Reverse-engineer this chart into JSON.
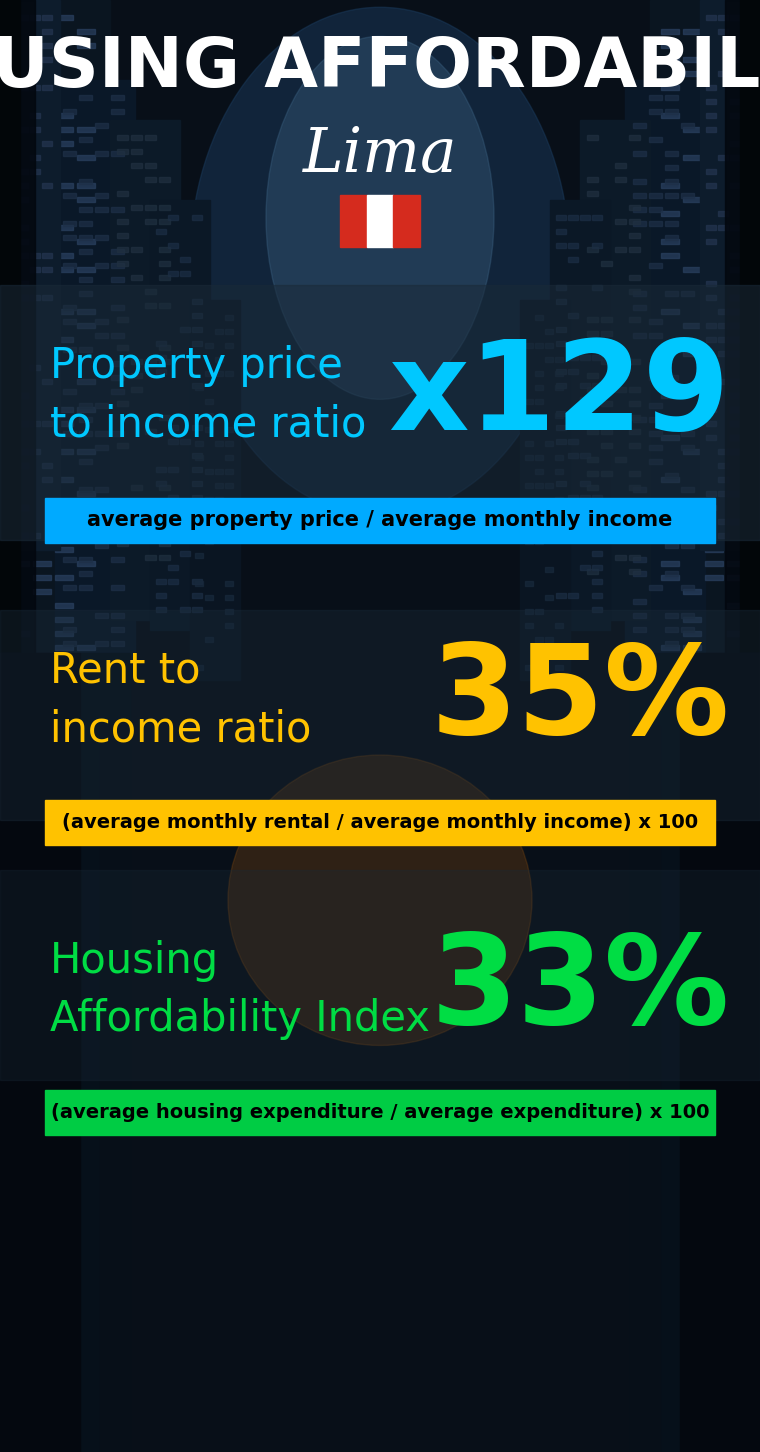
{
  "title": "HOUSING AFFORDABILITY",
  "city": "Lima",
  "bg_color": "#050d14",
  "section1_label": "Property price\nto income ratio",
  "section1_value": "x129",
  "section1_label_color": "#00c8ff",
  "section1_value_color": "#00c8ff",
  "section1_banner": "average property price / average monthly income",
  "section1_banner_bg": "#00aaff",
  "section2_label": "Rent to\nincome ratio",
  "section2_value": "35%",
  "section2_label_color": "#ffc200",
  "section2_value_color": "#ffc200",
  "section2_banner": "(average monthly rental / average monthly income) x 100",
  "section2_banner_bg": "#ffc200",
  "section3_label": "Housing\nAffordability Index",
  "section3_value": "33%",
  "section3_label_color": "#00dd44",
  "section3_value_color": "#00dd44",
  "section3_banner": "(average housing expenditure / average expenditure) x 100",
  "section3_banner_bg": "#00cc44",
  "title_color": "#ffffff",
  "city_color": "#ffffff",
  "overlay1_color": "#1a2a3a",
  "overlay1_alpha": 0.6,
  "flag_red": "#d52b1e",
  "flag_white": "#ffffff"
}
